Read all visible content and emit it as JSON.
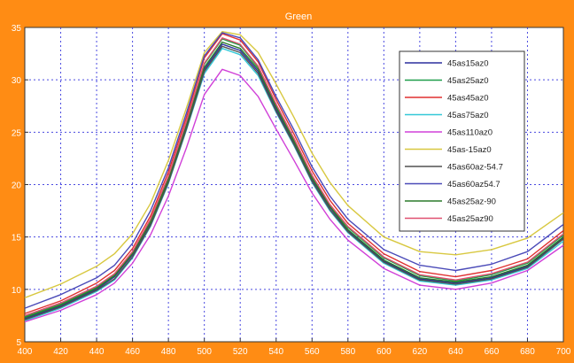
{
  "chart_data": {
    "type": "line",
    "title": "Green",
    "xlabel": "",
    "ylabel": "",
    "xlim": [
      400,
      700
    ],
    "ylim": [
      5,
      35
    ],
    "xticks": [
      400,
      420,
      440,
      460,
      480,
      500,
      520,
      540,
      560,
      580,
      600,
      620,
      640,
      660,
      680,
      700
    ],
    "yticks": [
      5,
      10,
      15,
      20,
      25,
      30,
      35
    ],
    "grid": true,
    "legend_position": "top-right",
    "x": [
      400,
      420,
      440,
      450,
      460,
      470,
      480,
      490,
      500,
      510,
      520,
      530,
      540,
      550,
      560,
      570,
      580,
      600,
      620,
      640,
      660,
      680,
      700
    ],
    "series": [
      {
        "name": "45as15az0",
        "color": "#2b2f9e",
        "values": [
          7.2,
          8.4,
          10.0,
          11.2,
          13.3,
          16.3,
          20.4,
          25.5,
          31.0,
          33.4,
          32.8,
          30.8,
          27.2,
          24.0,
          20.5,
          17.8,
          15.6,
          12.7,
          11.0,
          10.6,
          11.1,
          12.2,
          14.9
        ]
      },
      {
        "name": "45as25az0",
        "color": "#1f9e4a",
        "values": [
          7.4,
          8.6,
          10.2,
          11.4,
          13.5,
          16.6,
          20.7,
          25.9,
          31.5,
          33.9,
          33.3,
          31.2,
          27.6,
          24.3,
          20.8,
          18.0,
          15.9,
          13.0,
          11.3,
          10.8,
          11.4,
          12.5,
          15.2
        ]
      },
      {
        "name": "45as45az0",
        "color": "#e03030",
        "values": [
          7.7,
          8.9,
          10.6,
          11.8,
          13.9,
          17.0,
          21.2,
          26.4,
          32.1,
          34.4,
          33.8,
          31.7,
          28.1,
          24.8,
          21.3,
          18.5,
          16.3,
          13.4,
          11.7,
          11.2,
          11.8,
          12.9,
          15.6
        ]
      },
      {
        "name": "45as75az0",
        "color": "#33c8d8",
        "values": [
          7.0,
          8.2,
          9.8,
          10.9,
          13.0,
          16.0,
          20.1,
          25.2,
          30.6,
          33.0,
          32.4,
          30.4,
          26.9,
          23.7,
          20.2,
          17.5,
          15.4,
          12.5,
          10.8,
          10.4,
          10.9,
          12.0,
          14.6
        ]
      },
      {
        "name": "45as110az0",
        "color": "#d040d8",
        "values": [
          6.9,
          8.0,
          9.5,
          10.6,
          12.5,
          15.2,
          18.9,
          23.5,
          28.6,
          31.0,
          30.4,
          28.4,
          25.3,
          22.3,
          19.2,
          16.7,
          14.7,
          12.0,
          10.4,
          10.0,
          10.6,
          11.8,
          14.2
        ]
      },
      {
        "name": "45as-15az0",
        "color": "#d8c840",
        "values": [
          9.2,
          10.5,
          12.2,
          13.4,
          15.3,
          18.2,
          22.3,
          27.3,
          32.6,
          34.6,
          34.3,
          32.6,
          29.6,
          26.4,
          23.0,
          20.2,
          18.0,
          15.0,
          13.6,
          13.3,
          13.8,
          14.9,
          17.3
        ]
      },
      {
        "name": "45as60az-54.7",
        "color": "#505050",
        "values": [
          7.1,
          8.3,
          9.9,
          11.0,
          13.1,
          16.1,
          20.2,
          25.3,
          30.8,
          33.2,
          32.6,
          30.6,
          27.0,
          23.8,
          20.3,
          17.6,
          15.5,
          12.6,
          10.9,
          10.5,
          11.0,
          12.1,
          14.8
        ]
      },
      {
        "name": "45as60az54.7",
        "color": "#4a4ab8",
        "values": [
          8.2,
          9.5,
          11.1,
          12.3,
          14.4,
          17.5,
          21.6,
          26.8,
          32.3,
          34.5,
          34.0,
          31.9,
          28.4,
          25.2,
          21.7,
          18.9,
          16.7,
          13.8,
          12.3,
          11.8,
          12.4,
          13.6,
          16.2
        ]
      },
      {
        "name": "45as25az-90",
        "color": "#2a7a2a",
        "values": [
          7.3,
          8.5,
          10.1,
          11.3,
          13.4,
          16.4,
          20.5,
          25.7,
          31.2,
          33.6,
          33.0,
          31.0,
          27.4,
          24.1,
          20.6,
          17.9,
          15.7,
          12.8,
          11.1,
          10.7,
          11.2,
          12.3,
          15.0
        ]
      },
      {
        "name": "45as25az90",
        "color": "#e05070",
        "values": [
          7.5,
          8.7,
          10.3,
          11.5,
          13.6,
          16.7,
          20.8,
          26.0,
          31.6,
          34.0,
          33.4,
          31.3,
          27.7,
          24.4,
          20.9,
          18.1,
          16.0,
          13.1,
          11.4,
          10.9,
          11.5,
          12.6,
          15.3
        ]
      }
    ]
  }
}
